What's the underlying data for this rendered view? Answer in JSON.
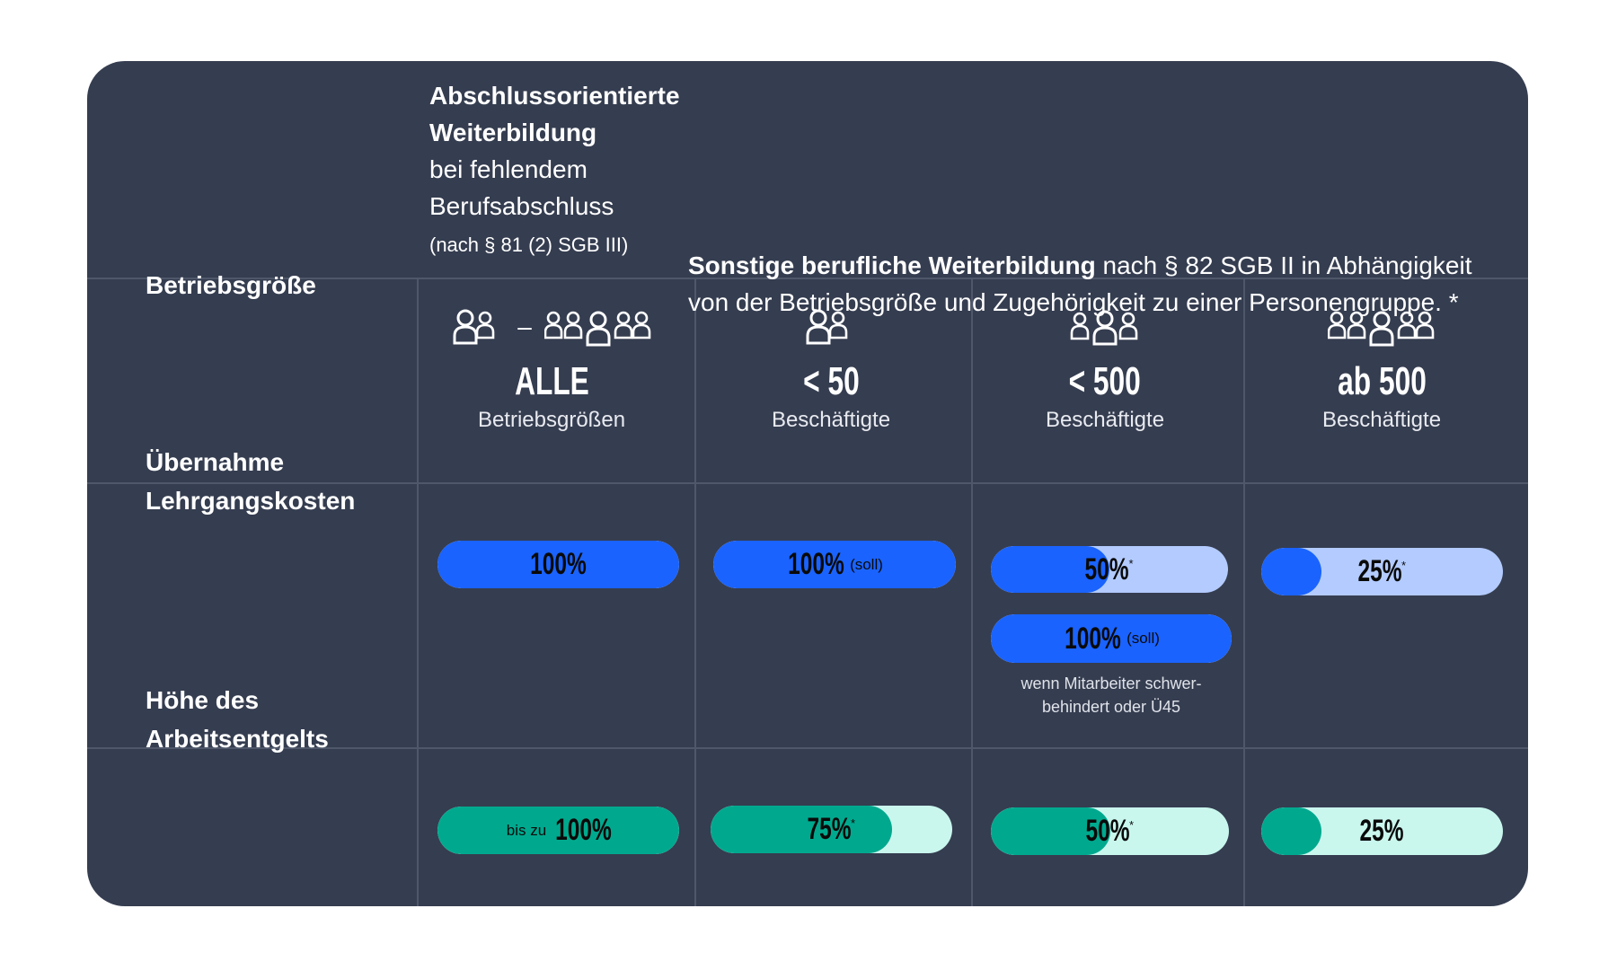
{
  "header": {
    "left": {
      "line1": "Abschlussorientierte",
      "line2": "Weiterbildung",
      "line3": "bei fehlendem",
      "line4": "Berufsabschluss",
      "line5": "(nach § 81 (2) SGB III)"
    },
    "right": {
      "bold": "Sonstige berufliche Weiterbildung",
      "rest1": " nach § 82 SGB II in Abhängigkeit",
      "line2": "von der Betriebsgröße und Zugehörigkeit zu einer Personengruppe. *"
    }
  },
  "rows": {
    "size": "Betriebsgröße",
    "costs": {
      "line1": "Übernahme",
      "line2": "Lehrgangskosten"
    },
    "pay": {
      "line1": "Höhe des",
      "line2": "Arbeitsentgelts"
    }
  },
  "columns": [
    {
      "icon": "people-range-icon",
      "big": "ALLE",
      "sub": "Betriebsgrößen",
      "dash": "–"
    },
    {
      "icon": "two-people-icon",
      "big": "< 50",
      "sub": "Beschäftigte"
    },
    {
      "icon": "three-people-icon",
      "big": "< 500",
      "sub": "Beschäftigte"
    },
    {
      "icon": "five-people-icon",
      "big": "ab 500",
      "sub": "Beschäftigte"
    }
  ],
  "costs": [
    {
      "value": 100,
      "label": "100%",
      "suffix": ""
    },
    {
      "value": 100,
      "label": "100%",
      "suffix": "(soll)"
    },
    {
      "value": 50,
      "label": "50%",
      "star": "*"
    },
    {
      "value": 100,
      "label": "100%",
      "suffix": "(soll)",
      "note1": "wenn Mitarbeiter schwer-",
      "note2": "behindert oder Ü45"
    },
    {
      "value": 25,
      "label": "25%",
      "star": "*"
    }
  ],
  "pay": [
    {
      "value": 100,
      "prefix": "bis zu",
      "label": "100%"
    },
    {
      "value": 75,
      "label": "75%",
      "star": "*"
    },
    {
      "value": 50,
      "label": "50%",
      "star": "*"
    },
    {
      "value": 25,
      "label": "25%"
    }
  ],
  "colors": {
    "card": "#353d50",
    "blue": "#1a63ff",
    "light_blue": "#b3cbff",
    "green": "#00a98e",
    "light_green": "#c9f7ee"
  }
}
